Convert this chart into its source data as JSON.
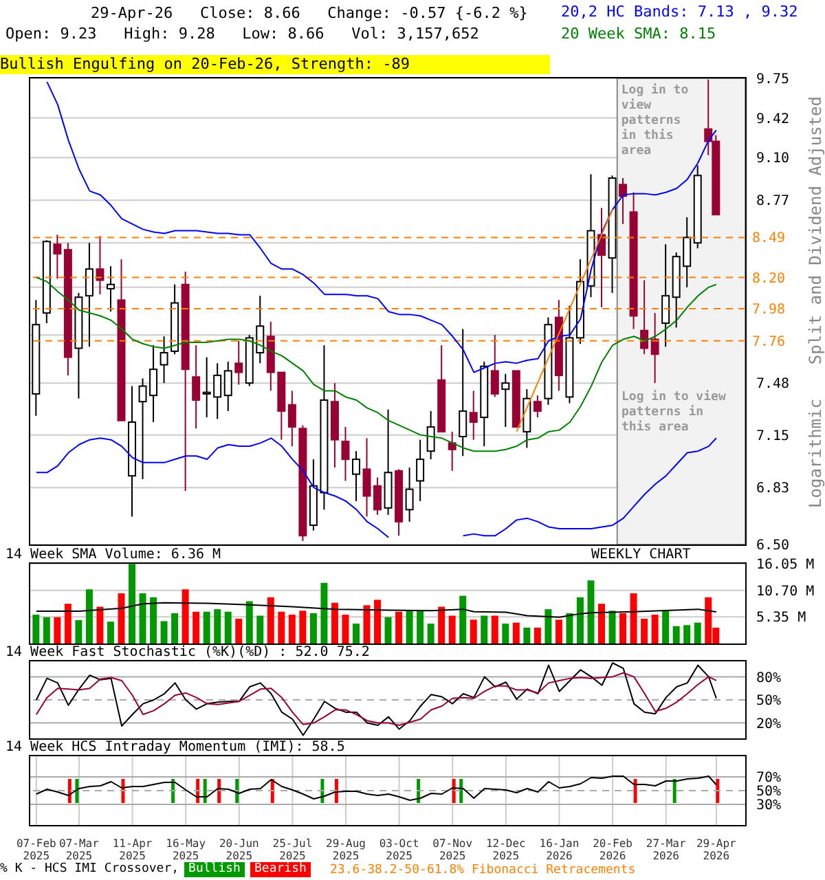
{
  "chart_data": [
    {
      "type": "candlestick",
      "title": "29-Apr-26   Close: 8.66   Change: -0.57 {-6.2 %}",
      "subtitle": "Open: 9.23   High: 9.28   Low: 8.66   Vol: 3,157,652",
      "ylabel": "Split and Dividend Adjusted",
      "annotations": [
        "Bullish Engulfing on 20-Feb-26, Strength: -89",
        "Logarithmic",
        "Log in to view patterns in this area",
        "23.6-38.2-50-61.8% Fibonacci Retracements"
      ],
      "x": [
        "2025-02-07",
        "2025-02-14",
        "2025-02-21",
        "2025-02-28",
        "2025-03-07",
        "2025-03-14",
        "2025-03-21",
        "2025-03-28",
        "2025-04-04",
        "2025-04-11",
        "2025-04-18",
        "2025-04-25",
        "2025-05-02",
        "2025-05-09",
        "2025-05-16",
        "2025-05-23",
        "2025-05-30",
        "2025-06-06",
        "2025-06-13",
        "2025-06-20",
        "2025-06-27",
        "2025-07-04",
        "2025-07-11",
        "2025-07-18",
        "2025-07-25",
        "2025-08-01",
        "2025-08-08",
        "2025-08-15",
        "2025-08-22",
        "2025-08-29",
        "2025-09-05",
        "2025-09-12",
        "2025-09-19",
        "2025-09-26",
        "2025-10-03",
        "2025-10-10",
        "2025-10-17",
        "2025-10-24",
        "2025-10-31",
        "2025-11-07",
        "2025-11-14",
        "2025-11-21",
        "2025-11-28",
        "2025-12-05",
        "2025-12-12",
        "2025-12-19",
        "2025-12-26",
        "2026-01-02",
        "2026-01-09",
        "2026-01-16",
        "2026-01-23",
        "2026-01-30",
        "2026-02-06",
        "2026-02-13",
        "2026-02-20",
        "2026-02-27",
        "2026-03-06",
        "2026-03-13",
        "2026-03-20",
        "2026-03-27",
        "2026-04-03",
        "2026-04-10",
        "2026-04-17",
        "2026-04-24",
        "2026-04-29"
      ],
      "ohlc": [
        [
          7.41,
          8.04,
          7.27,
          7.87
        ],
        [
          7.95,
          8.47,
          7.88,
          8.46
        ],
        [
          8.44,
          8.51,
          8.19,
          8.37
        ],
        [
          8.4,
          8.45,
          7.53,
          7.65
        ],
        [
          7.71,
          8.09,
          7.38,
          8.06
        ],
        [
          8.07,
          8.45,
          7.72,
          8.26
        ],
        [
          8.26,
          8.5,
          8.08,
          8.18
        ],
        [
          8.12,
          8.28,
          7.96,
          8.15
        ],
        [
          8.04,
          8.33,
          7.24,
          7.24
        ],
        [
          6.9,
          7.46,
          6.66,
          7.23
        ],
        [
          7.36,
          7.51,
          6.88,
          7.46
        ],
        [
          7.4,
          7.73,
          7.23,
          7.57
        ],
        [
          7.6,
          7.79,
          7.48,
          7.68
        ],
        [
          7.69,
          8.15,
          7.67,
          8.02
        ],
        [
          8.15,
          8.24,
          6.81,
          7.57
        ],
        [
          7.52,
          7.73,
          7.19,
          7.37
        ],
        [
          7.41,
          7.65,
          7.26,
          7.42
        ],
        [
          7.39,
          7.61,
          7.25,
          7.53
        ],
        [
          7.4,
          7.62,
          7.3,
          7.56
        ],
        [
          7.61,
          7.76,
          7.47,
          7.55
        ],
        [
          7.48,
          7.8,
          7.46,
          7.78
        ],
        [
          7.68,
          8.07,
          7.61,
          7.86
        ],
        [
          7.79,
          7.89,
          7.43,
          7.55
        ],
        [
          7.55,
          7.55,
          7.12,
          7.3
        ],
        [
          7.34,
          7.43,
          7.08,
          7.2
        ],
        [
          7.19,
          7.21,
          6.52,
          6.55
        ],
        [
          6.61,
          7.0,
          6.58,
          6.84
        ],
        [
          6.8,
          7.73,
          6.7,
          7.37
        ],
        [
          7.36,
          7.48,
          6.95,
          7.12
        ],
        [
          7.11,
          7.2,
          6.87,
          7.0
        ],
        [
          6.91,
          7.05,
          6.75,
          7.0
        ],
        [
          6.94,
          7.13,
          6.66,
          6.78
        ],
        [
          6.84,
          6.89,
          6.67,
          6.7
        ],
        [
          6.71,
          7.31,
          6.67,
          6.92
        ],
        [
          6.93,
          6.94,
          6.55,
          6.63
        ],
        [
          6.7,
          6.95,
          6.63,
          6.82
        ],
        [
          6.87,
          7.12,
          6.75,
          7.0
        ],
        [
          7.05,
          7.3,
          7.0,
          7.2
        ],
        [
          7.5,
          7.73,
          7.17,
          7.17
        ],
        [
          7.1,
          7.17,
          6.93,
          7.06
        ],
        [
          7.14,
          7.84,
          7.02,
          7.3
        ],
        [
          7.29,
          7.43,
          7.12,
          7.23
        ],
        [
          7.26,
          7.62,
          7.08,
          7.59
        ],
        [
          7.56,
          7.8,
          7.39,
          7.41
        ],
        [
          7.44,
          7.54,
          7.2,
          7.48
        ],
        [
          7.56,
          7.56,
          7.2,
          7.2
        ],
        [
          7.17,
          7.44,
          7.07,
          7.38
        ],
        [
          7.36,
          7.4,
          7.26,
          7.3
        ],
        [
          7.38,
          7.92,
          7.34,
          7.87
        ],
        [
          7.92,
          8.04,
          7.43,
          7.53
        ],
        [
          7.39,
          8.0,
          7.35,
          7.78
        ],
        [
          7.78,
          8.33,
          7.74,
          8.17
        ],
        [
          8.14,
          8.97,
          8.06,
          8.54
        ],
        [
          8.51,
          8.71,
          7.99,
          8.36
        ],
        [
          8.34,
          8.96,
          8.09,
          8.94
        ],
        [
          8.89,
          8.94,
          8.59,
          8.8
        ],
        [
          8.68,
          8.83,
          7.84,
          7.93
        ],
        [
          7.83,
          8.18,
          7.67,
          7.71
        ],
        [
          7.77,
          7.95,
          7.48,
          7.67
        ],
        [
          7.88,
          8.44,
          7.72,
          8.07
        ],
        [
          8.06,
          8.38,
          7.85,
          8.35
        ],
        [
          8.28,
          8.64,
          8.13,
          8.49
        ],
        [
          8.45,
          9.04,
          8.41,
          8.96
        ],
        [
          9.33,
          9.74,
          9.12,
          9.23
        ],
        [
          9.23,
          9.28,
          8.66,
          8.66
        ]
      ],
      "series": [
        {
          "name": "20,2 HC Bands: 7.13 , 9.32",
          "type": "line",
          "color": "#0000ff",
          "values": [
            null,
            9.72,
            9.53,
            9.24,
            9.01,
            8.84,
            8.81,
            8.73,
            8.63,
            8.59,
            8.55,
            8.53,
            8.52,
            8.54,
            8.54,
            8.54,
            8.53,
            8.52,
            8.52,
            8.51,
            8.51,
            8.41,
            8.3,
            8.26,
            8.26,
            8.22,
            8.16,
            8.08,
            8.08,
            8.08,
            8.07,
            8.07,
            8.05,
            7.96,
            7.94,
            7.94,
            7.93,
            7.9,
            7.87,
            7.79,
            7.7,
            7.55,
            7.58,
            7.61,
            7.62,
            7.61,
            7.63,
            7.64,
            7.76,
            7.79,
            7.8,
            7.91,
            8.26,
            8.53,
            8.7,
            8.81,
            8.82,
            8.82,
            8.81,
            8.83,
            8.86,
            8.93,
            9.06,
            9.24,
            9.32
          ]
        },
        {
          "type": "line",
          "color": "#0000ff",
          "values": [
            6.92,
            6.92,
            6.96,
            7.04,
            7.09,
            7.12,
            7.13,
            7.12,
            7.08,
            7.01,
            6.98,
            6.98,
            6.98,
            7.0,
            7.02,
            7.02,
            7.0,
            7.07,
            7.09,
            7.08,
            7.08,
            7.1,
            7.13,
            7.08,
            7.0,
            6.93,
            6.83,
            6.8,
            6.78,
            6.75,
            6.7,
            6.63,
            6.59,
            6.54,
            null,
            null,
            null,
            null,
            null,
            null,
            6.55,
            6.56,
            6.55,
            6.55,
            6.59,
            6.64,
            6.65,
            6.63,
            6.6,
            6.59,
            6.59,
            6.59,
            6.59,
            6.6,
            6.61,
            6.65,
            6.72,
            6.79,
            6.85,
            6.9,
            6.97,
            7.04,
            7.05,
            7.08,
            7.13
          ]
        },
        {
          "name": "20 Week SMA: 8.15",
          "type": "line",
          "color": "#008000",
          "values": [
            8.2,
            8.17,
            8.1,
            8.04,
            7.97,
            7.95,
            7.93,
            7.9,
            7.84,
            7.77,
            7.74,
            7.72,
            7.71,
            7.73,
            7.75,
            7.75,
            7.75,
            7.76,
            7.77,
            7.77,
            7.76,
            7.73,
            7.69,
            7.66,
            7.61,
            7.56,
            7.47,
            7.43,
            7.43,
            7.39,
            7.37,
            7.32,
            7.29,
            7.24,
            7.21,
            7.18,
            7.15,
            7.14,
            7.13,
            7.1,
            7.07,
            7.05,
            7.05,
            7.05,
            7.06,
            7.08,
            7.12,
            7.13,
            7.17,
            7.18,
            7.23,
            7.33,
            7.46,
            7.62,
            7.73,
            7.77,
            7.79,
            7.76,
            7.79,
            7.84,
            7.9,
            7.99,
            8.07,
            8.13,
            8.15
          ]
        },
        {
          "type": "line",
          "color": "#ff8000",
          "x": [
            "2025-12-19",
            "2026-02-20"
          ],
          "values": [
            7.17,
            8.7
          ]
        }
      ],
      "xlim": [
        "2025-02-03",
        "2026-05-18"
      ],
      "xticks": [
        "2025-02-07",
        "2025-03-07",
        "2025-04-11",
        "2025-05-16",
        "2025-06-20",
        "2025-07-25",
        "2025-08-29",
        "2025-10-03",
        "2025-11-07",
        "2025-12-12",
        "2026-01-16",
        "2026-02-20",
        "2026-03-27",
        "2026-04-29"
      ],
      "ylim": [
        6.5,
        9.75
      ],
      "yticks": [
        {
          "value": 6.5,
          "label": "6.50"
        },
        6.83,
        7.15,
        7.48,
        {
          "value": 7.8,
          "label": null
        },
        {
          "value": 8.13,
          "label": null
        },
        {
          "value": 8.45,
          "label": null
        },
        8.77,
        {
          "value": 9.1,
          "label": "9.10"
        },
        9.42,
        9.75
      ],
      "log": true,
      "grid": true,
      "tick_labels": "y",
      "legend": "top right",
      "ref_lines": [
        {
          "axis": "y",
          "value": 7.76,
          "label": "7.76",
          "color": "#ff8000",
          "line_style": "dashed"
        },
        {
          "axis": "y",
          "value": 7.98,
          "label": "7.98",
          "color": "#ff8000",
          "line_style": "dashed"
        },
        {
          "axis": "y",
          "value": 8.2,
          "label": "8.20",
          "color": "#ff8000",
          "line_style": "dashed"
        },
        {
          "axis": "y",
          "value": 8.49,
          "label": "8.49",
          "color": "#ff8000",
          "line_style": "dashed"
        }
      ],
      "bands": [
        {
          "axis": "x",
          "from": "2026-02-23",
          "to": "2026-05-18",
          "label": "Log in to view patterns in this area",
          "color": "#f2f2f2"
        }
      ]
    },
    {
      "type": "bar",
      "title": "14 Week SMA Volume: 6.36 M",
      "annotations": [
        "WEEKLY CHART"
      ],
      "x": [
        "2025-02-07",
        "2025-02-14",
        "2025-02-21",
        "2025-02-28",
        "2025-03-07",
        "2025-03-14",
        "2025-03-21",
        "2025-03-28",
        "2025-04-04",
        "2025-04-11",
        "2025-04-18",
        "2025-04-25",
        "2025-05-02",
        "2025-05-09",
        "2025-05-16",
        "2025-05-23",
        "2025-05-30",
        "2025-06-06",
        "2025-06-13",
        "2025-06-20",
        "2025-06-27",
        "2025-07-04",
        "2025-07-11",
        "2025-07-18",
        "2025-07-25",
        "2025-08-01",
        "2025-08-08",
        "2025-08-15",
        "2025-08-22",
        "2025-08-29",
        "2025-09-05",
        "2025-09-12",
        "2025-09-19",
        "2025-09-26",
        "2025-10-03",
        "2025-10-10",
        "2025-10-17",
        "2025-10-24",
        "2025-10-31",
        "2025-11-07",
        "2025-11-14",
        "2025-11-21",
        "2025-11-28",
        "2025-12-05",
        "2025-12-12",
        "2025-12-19",
        "2025-12-26",
        "2026-01-02",
        "2026-01-09",
        "2026-01-16",
        "2026-01-23",
        "2026-01-30",
        "2026-02-06",
        "2026-02-13",
        "2026-02-20",
        "2026-02-27",
        "2026-03-06",
        "2026-03-13",
        "2026-03-20",
        "2026-03-27",
        "2026-04-03",
        "2026-04-10",
        "2026-04-17",
        "2026-04-24",
        "2026-04-29"
      ],
      "series": [
        {
          "type": "bar",
          "values": [
            5.8,
            5.3,
            5.3,
            8.0,
            4.7,
            10.9,
            7.4,
            4.4,
            10.1,
            16.0,
            10.1,
            9.3,
            4.5,
            6.1,
            10.9,
            6.4,
            6.4,
            6.9,
            6.4,
            5.0,
            8.5,
            5.6,
            9.3,
            6.4,
            5.8,
            6.6,
            6.1,
            12.2,
            8.2,
            5.8,
            4.0,
            7.7,
            8.8,
            5.3,
            6.4,
            6.6,
            6.6,
            4.0,
            7.4,
            5.6,
            9.6,
            4.8,
            5.6,
            5.6,
            4.0,
            4.2,
            3.2,
            3.2,
            6.9,
            4.8,
            6.1,
            9.3,
            12.7,
            8.0,
            6.6,
            6.1,
            10.1,
            5.0,
            5.8,
            6.5,
            3.5,
            3.7,
            4.2,
            9.3,
            3.2
          ],
          "colors": [
            "#009900",
            "#009900",
            "#ff0000",
            "#ff0000",
            "#009900",
            "#009900",
            "#ff0000",
            "#009900",
            "#ff0000",
            "#009900",
            "#009900",
            "#009900",
            "#009900",
            "#009900",
            "#ff0000",
            "#ff0000",
            "#009900",
            "#009900",
            "#009900",
            "#ff0000",
            "#009900",
            "#009900",
            "#ff0000",
            "#ff0000",
            "#ff0000",
            "#ff0000",
            "#009900",
            "#009900",
            "#ff0000",
            "#ff0000",
            "#009900",
            "#ff0000",
            "#ff0000",
            "#009900",
            "#ff0000",
            "#009900",
            "#009900",
            "#009900",
            "#ff0000",
            "#ff0000",
            "#009900",
            "#ff0000",
            "#009900",
            "#ff0000",
            "#009900",
            "#ff0000",
            "#009900",
            "#ff0000",
            "#009900",
            "#ff0000",
            "#009900",
            "#009900",
            "#009900",
            "#ff0000",
            "#009900",
            "#ff0000",
            "#ff0000",
            "#ff0000",
            "#ff0000",
            "#009900",
            "#009900",
            "#009900",
            "#009900",
            "#ff0000",
            "#ff0000"
          ]
        },
        {
          "type": "line",
          "color": "#000000",
          "x": [
            "2025-02-07",
            "2025-03-07",
            "2025-04-04",
            "2025-04-18",
            "2025-05-02",
            "2025-05-30",
            "2025-06-27",
            "2025-07-25",
            "2025-08-22",
            "2025-09-26",
            "2025-10-24",
            "2025-11-14",
            "2025-11-21",
            "2025-12-12",
            "2025-12-26",
            "2026-01-16",
            "2026-01-30",
            "2026-02-06",
            "2026-03-06",
            "2026-04-17",
            "2026-04-29"
          ],
          "values": [
            6.5,
            6.5,
            7.1,
            8.0,
            8.2,
            8.1,
            7.8,
            7.4,
            6.9,
            6.7,
            6.6,
            6.9,
            6.4,
            6.3,
            5.6,
            5.3,
            6.0,
            6.2,
            6.4,
            6.9,
            6.36
          ]
        }
      ],
      "xlim": [
        "2025-02-03",
        "2026-05-18"
      ],
      "xticks": [
        "2025-02-07",
        "2025-03-07",
        "2025-04-11",
        "2025-05-16",
        "2025-06-20",
        "2025-07-25",
        "2025-08-29",
        "2025-10-03",
        "2025-11-07",
        "2025-12-12",
        "2026-01-16",
        "2026-02-20",
        "2026-03-27",
        "2026-04-29"
      ],
      "ylim": [
        0,
        16.05
      ],
      "yticks": [
        {
          "value": 5.35,
          "label": "5.35 M"
        },
        {
          "value": 10.7,
          "label": "10.70 M"
        },
        {
          "value": 16.05,
          "label": "16.05 M"
        }
      ],
      "grid": true,
      "tick_labels": "y"
    },
    {
      "type": "line",
      "title": "14 Week Fast Stochastic (%K)(%D) : 52.0 75.2",
      "x": [
        "2025-02-07",
        "2025-02-14",
        "2025-02-21",
        "2025-02-28",
        "2025-03-07",
        "2025-03-14",
        "2025-03-21",
        "2025-03-28",
        "2025-04-04",
        "2025-04-11",
        "2025-04-18",
        "2025-04-25",
        "2025-05-02",
        "2025-05-09",
        "2025-05-16",
        "2025-05-23",
        "2025-05-30",
        "2025-06-06",
        "2025-06-13",
        "2025-06-20",
        "2025-06-27",
        "2025-07-04",
        "2025-07-11",
        "2025-07-18",
        "2025-07-25",
        "2025-08-01",
        "2025-08-08",
        "2025-08-15",
        "2025-08-22",
        "2025-08-29",
        "2025-09-05",
        "2025-09-12",
        "2025-09-19",
        "2025-09-26",
        "2025-10-03",
        "2025-10-10",
        "2025-10-17",
        "2025-10-24",
        "2025-10-31",
        "2025-11-07",
        "2025-11-14",
        "2025-11-21",
        "2025-11-28",
        "2025-12-05",
        "2025-12-12",
        "2025-12-19",
        "2025-12-26",
        "2026-01-02",
        "2026-01-09",
        "2026-01-16",
        "2026-01-23",
        "2026-01-30",
        "2026-02-06",
        "2026-02-13",
        "2026-02-20",
        "2026-02-27",
        "2026-03-06",
        "2026-03-13",
        "2026-03-20",
        "2026-03-27",
        "2026-04-03",
        "2026-04-10",
        "2026-04-17",
        "2026-04-24",
        "2026-04-29"
      ],
      "series": [
        {
          "color": "#000000",
          "values": [
            50,
            78,
            72,
            43,
            64,
            82,
            76,
            78,
            16,
            31,
            45,
            50,
            58,
            72,
            50,
            38,
            45,
            47,
            48,
            48,
            67,
            72,
            58,
            34,
            25,
            4,
            25,
            48,
            39,
            34,
            34,
            20,
            17,
            28,
            12,
            23,
            42,
            57,
            54,
            45,
            58,
            53,
            80,
            67,
            73,
            51,
            64,
            58,
            95,
            61,
            75,
            89,
            80,
            69,
            98,
            91,
            45,
            34,
            32,
            53,
            67,
            72,
            95,
            80,
            52.0
          ]
        },
        {
          "color": "#990033",
          "values": [
            31,
            53,
            65,
            64,
            63,
            65,
            77,
            79,
            75,
            56,
            31,
            36,
            45,
            56,
            59,
            53,
            45,
            44,
            46,
            48,
            56,
            64,
            65,
            53,
            34,
            18,
            20,
            28,
            37,
            37,
            31,
            23,
            20,
            20,
            17,
            21,
            25,
            37,
            42,
            52,
            53,
            52,
            61,
            68,
            68,
            63,
            63,
            59,
            72,
            75,
            78,
            79,
            78,
            79,
            80,
            85,
            80,
            58,
            35,
            39,
            47,
            58,
            70,
            80,
            75.2
          ]
        }
      ],
      "xlim": [
        "2025-02-03",
        "2026-05-18"
      ],
      "xticks": [
        "2025-02-07",
        "2025-03-07",
        "2025-04-11",
        "2025-05-16",
        "2025-06-20",
        "2025-07-25",
        "2025-08-29",
        "2025-10-03",
        "2025-11-07",
        "2025-12-12",
        "2026-01-16",
        "2026-02-20",
        "2026-03-27",
        "2026-04-29"
      ],
      "ylim": [
        0,
        100
      ],
      "yticks": [
        {
          "value": 20,
          "label": "20%"
        },
        {
          "value": 50,
          "label": "50%"
        },
        {
          "value": 80,
          "label": "80%"
        }
      ],
      "grid": "x",
      "tick_labels": "y",
      "ref_lines": [
        {
          "axis": "y",
          "value": 20,
          "color": "#aaaaaa",
          "line_style": "solid"
        },
        {
          "axis": "y",
          "value": 50,
          "color": "#aaaaaa",
          "line_style": "dashed"
        },
        {
          "axis": "y",
          "value": 80,
          "color": "#aaaaaa",
          "line_style": "solid"
        }
      ]
    },
    {
      "type": "line",
      "title": "14 Week HCS Intraday Momentum (IMI): 58.5",
      "legend": "bottom",
      "legend_title": "% K - HCS IMI Crossover,",
      "x": [
        "2025-02-07",
        "2025-02-14",
        "2025-02-21",
        "2025-02-28",
        "2025-03-07",
        "2025-03-14",
        "2025-03-21",
        "2025-03-28",
        "2025-04-04",
        "2025-04-11",
        "2025-04-18",
        "2025-04-25",
        "2025-05-02",
        "2025-05-09",
        "2025-05-16",
        "2025-05-23",
        "2025-05-30",
        "2025-06-06",
        "2025-06-13",
        "2025-06-20",
        "2025-06-27",
        "2025-07-04",
        "2025-07-11",
        "2025-07-18",
        "2025-07-25",
        "2025-08-01",
        "2025-08-08",
        "2025-08-15",
        "2025-08-22",
        "2025-08-29",
        "2025-09-05",
        "2025-09-12",
        "2025-09-19",
        "2025-09-26",
        "2025-10-03",
        "2025-10-10",
        "2025-10-17",
        "2025-10-24",
        "2025-10-31",
        "2025-11-07",
        "2025-11-14",
        "2025-11-21",
        "2025-11-28",
        "2025-12-05",
        "2025-12-12",
        "2025-12-19",
        "2025-12-26",
        "2026-01-02",
        "2026-01-09",
        "2026-01-16",
        "2026-01-23",
        "2026-01-30",
        "2026-02-06",
        "2026-02-13",
        "2026-02-20",
        "2026-02-27",
        "2026-03-06",
        "2026-03-13",
        "2026-03-20",
        "2026-03-27",
        "2026-04-03",
        "2026-04-10",
        "2026-04-17",
        "2026-04-24",
        "2026-04-29"
      ],
      "series": [
        {
          "name": "Bullish",
          "type": "bar",
          "color": "#009900",
          "x": [
            "2025-03-07",
            "2025-05-09",
            "2025-05-30",
            "2025-06-20",
            "2025-08-15",
            "2025-10-17",
            "2025-11-14",
            "2026-04-03"
          ],
          "base": [
            32,
            32,
            32,
            32,
            32,
            32,
            32,
            32
          ],
          "values": [
            35,
            35,
            35,
            35,
            35,
            35,
            35,
            35
          ]
        },
        {
          "name": "Bearish",
          "type": "bar",
          "color": "#ff0000",
          "x": [
            "2025-02-28",
            "2025-04-04",
            "2025-05-23",
            "2025-06-06",
            "2025-07-11",
            "2025-08-22",
            "2025-11-07",
            "2026-03-06",
            "2026-04-29"
          ],
          "base": [
            32,
            32,
            32,
            32,
            32,
            32,
            32,
            32,
            32
          ],
          "values": [
            35,
            35,
            35,
            35,
            35,
            35,
            35,
            35,
            35
          ]
        },
        {
          "type": "line",
          "color": "#000000",
          "values": [
            45,
            52,
            48,
            43,
            53,
            56,
            57,
            63,
            54,
            56,
            56,
            59,
            62,
            62,
            51,
            41,
            41,
            53,
            52,
            46,
            52,
            53,
            66,
            56,
            51,
            45,
            38,
            42,
            48,
            49,
            49,
            45,
            43,
            45,
            41,
            36,
            39,
            46,
            45,
            54,
            53,
            39,
            53,
            52,
            51,
            47,
            53,
            48,
            63,
            54,
            56,
            60,
            69,
            68,
            71,
            71,
            59,
            59,
            57,
            64,
            64,
            67,
            68,
            71,
            58.5
          ]
        }
      ],
      "xlim": [
        "2025-02-03",
        "2026-05-18"
      ],
      "xticks": [
        {
          "value": "2025-02-07",
          "label": "07-Feb 2025"
        },
        {
          "value": "2025-03-07",
          "label": "07-Mar 2025"
        },
        {
          "value": "2025-04-11",
          "label": "11-Apr 2025"
        },
        {
          "value": "2025-05-16",
          "label": "16-May 2025"
        },
        {
          "value": "2025-06-20",
          "label": "20-Jun 2025"
        },
        {
          "value": "2025-07-25",
          "label": "25-Jul 2025"
        },
        {
          "value": "2025-08-29",
          "label": "29-Aug 2025"
        },
        {
          "value": "2025-10-03",
          "label": "03-Oct 2025"
        },
        {
          "value": "2025-11-07",
          "label": "07-Nov 2025"
        },
        {
          "value": "2025-12-12",
          "label": "12-Dec 2025"
        },
        {
          "value": "2026-01-16",
          "label": "16-Jan 2026"
        },
        {
          "value": "2026-02-20",
          "label": "20-Feb 2026"
        },
        {
          "value": "2026-03-27",
          "label": "27-Mar 2026"
        },
        {
          "value": "2026-04-29",
          "label": "29-Apr 2026"
        }
      ],
      "ylim": [
        0,
        100
      ],
      "yticks": [
        {
          "value": 30,
          "label": "30%"
        },
        {
          "value": 50,
          "label": "50%"
        },
        {
          "value": 70,
          "label": "70%"
        }
      ],
      "grid": "x",
      "ref_lines": [
        {
          "axis": "y",
          "value": 30,
          "color": "#aaaaaa",
          "line_style": "solid"
        },
        {
          "axis": "y",
          "value": 50,
          "color": "#aaaaaa",
          "line_style": "dashed"
        },
        {
          "axis": "y",
          "value": 70,
          "color": "#aaaaaa",
          "line_style": "solid"
        }
      ]
    }
  ]
}
